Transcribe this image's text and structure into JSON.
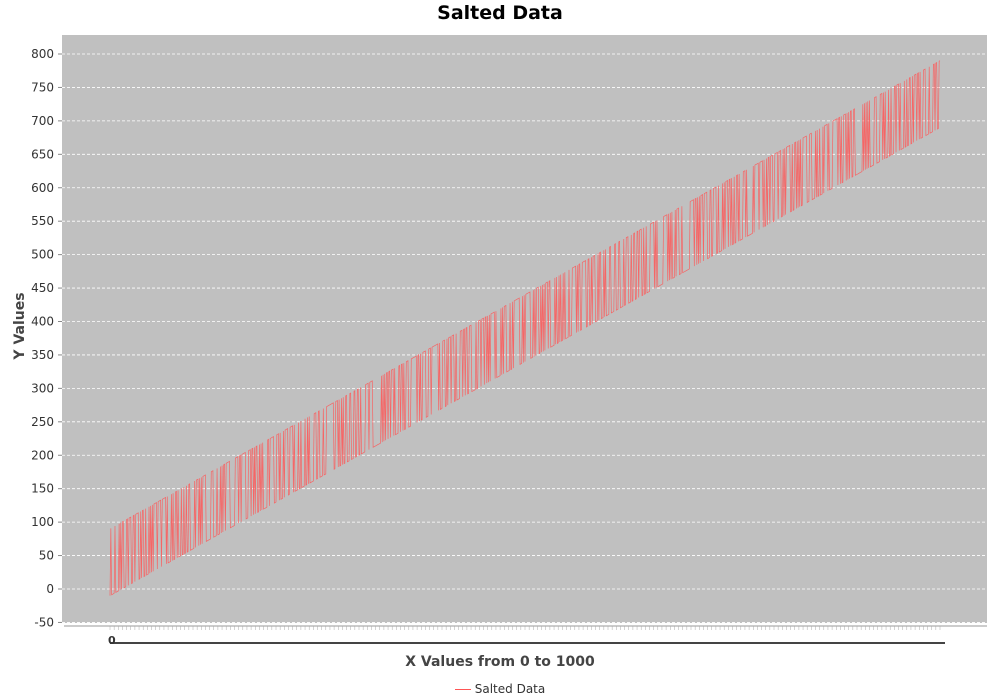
{
  "chart_data": {
    "type": "line",
    "title": "Salted Data",
    "xlabel": "X Values from 0 to 1000",
    "ylabel": "Y Values",
    "xlim": [
      0,
      1000
    ],
    "ylim": [
      -50,
      820
    ],
    "yticks": [
      -50,
      0,
      50,
      100,
      150,
      200,
      250,
      300,
      350,
      400,
      450,
      500,
      550,
      600,
      650,
      700,
      750,
      800
    ],
    "grid": true,
    "legend_position": "bottom-center",
    "series": [
      {
        "name": "Salted Data",
        "color": "#ff5555",
        "base_line": {
          "intercept": -10,
          "slope": 0.7
        },
        "salt_offset": 100,
        "x_first": 0,
        "x_last": 1000
      }
    ],
    "x_tick_label_visible": "0"
  },
  "colors": {
    "plot_background": "#c0c0c0",
    "gridline": "#ffffff",
    "series": "#ff5555"
  }
}
